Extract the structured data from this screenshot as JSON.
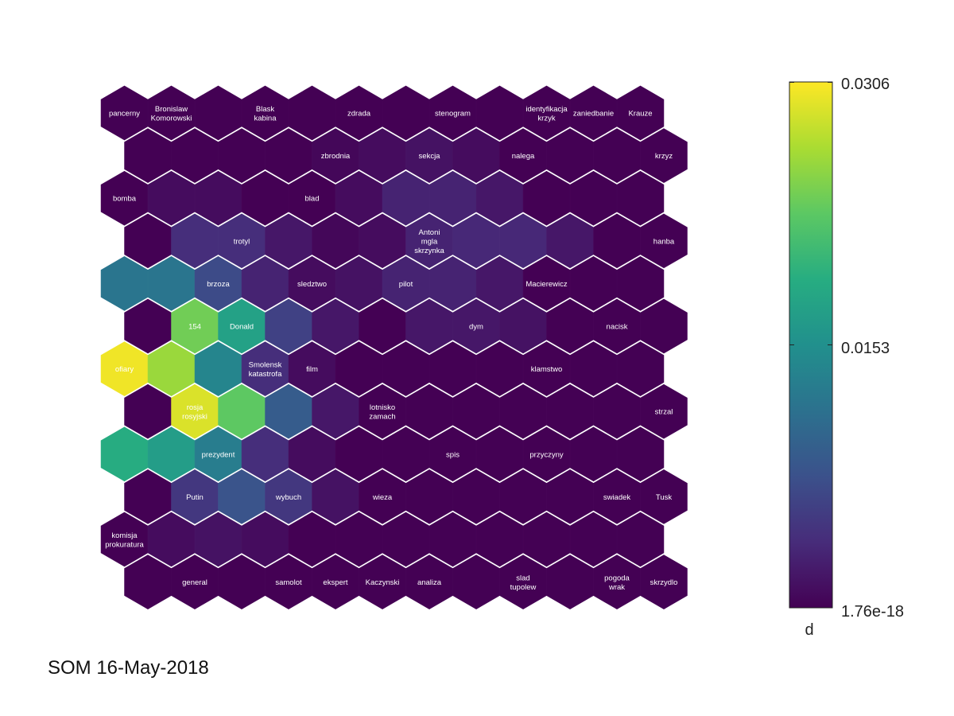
{
  "footer_text": "SOM 16-May-2018",
  "chart_data": {
    "type": "heatmap",
    "subtype": "som-hexagonal-u-matrix",
    "rows": 12,
    "cols": 12,
    "colormap": "viridis",
    "values": [
      [
        0.0,
        0.0,
        0.0,
        0.0,
        0.0,
        0.0,
        0.0,
        0.0,
        0.0,
        0.0,
        0.0,
        0.0
      ],
      [
        0.0,
        0.0,
        0.0,
        0.0,
        0.0005,
        0.001,
        0.0015,
        0.001,
        0.0,
        0.0,
        0.0,
        0.0
      ],
      [
        0.0,
        0.001,
        0.001,
        0.0,
        0.0,
        0.001,
        0.003,
        0.003,
        0.002,
        0.0,
        0.0,
        0.0
      ],
      [
        0.0,
        0.004,
        0.004,
        0.002,
        0.0005,
        0.001,
        0.003,
        0.0035,
        0.0035,
        0.002,
        0.0,
        0.0
      ],
      [
        0.012,
        0.012,
        0.007,
        0.003,
        0.001,
        0.0015,
        0.003,
        0.003,
        0.002,
        0.0,
        0.0,
        0.0
      ],
      [
        0.0,
        0.024,
        0.0175,
        0.006,
        0.002,
        0.0,
        0.002,
        0.002,
        0.0015,
        0.0,
        0.0,
        0.0
      ],
      [
        0.03,
        0.026,
        0.014,
        0.004,
        0.001,
        0.0,
        0.0,
        0.0,
        0.0,
        0.0,
        0.0,
        0.0
      ],
      [
        0.0,
        0.029,
        0.023,
        0.009,
        0.002,
        0.0,
        0.0,
        0.0,
        0.0,
        0.0,
        0.0,
        0.0
      ],
      [
        0.019,
        0.017,
        0.013,
        0.004,
        0.001,
        0.0,
        0.0,
        0.0,
        0.0,
        0.0,
        0.0,
        0.0
      ],
      [
        0.0,
        0.005,
        0.008,
        0.005,
        0.0015,
        0.0,
        0.0,
        0.0,
        0.0,
        0.0,
        0.0,
        0.0
      ],
      [
        0.0,
        0.001,
        0.0015,
        0.001,
        0.0,
        0.0,
        0.0,
        0.0,
        0.0,
        0.0,
        0.0,
        0.0
      ],
      [
        0.0,
        0.0,
        0.0,
        0.0,
        0.0,
        0.0,
        0.0,
        0.0,
        0.0,
        0.0,
        0.0,
        0.0
      ]
    ],
    "labels": [
      {
        "row": 0,
        "col": 0,
        "lines": [
          "pancerny"
        ]
      },
      {
        "row": 0,
        "col": 1,
        "lines": [
          "Bronislaw",
          "Komorowski"
        ]
      },
      {
        "row": 0,
        "col": 3,
        "lines": [
          "Blask",
          "kabina"
        ]
      },
      {
        "row": 0,
        "col": 5,
        "lines": [
          "zdrada"
        ]
      },
      {
        "row": 0,
        "col": 7,
        "lines": [
          "stenogram"
        ]
      },
      {
        "row": 0,
        "col": 9,
        "lines": [
          "identyfikacja",
          "krzyk"
        ]
      },
      {
        "row": 0,
        "col": 10,
        "lines": [
          "zaniedbanie"
        ]
      },
      {
        "row": 0,
        "col": 11,
        "lines": [
          "Krauze"
        ]
      },
      {
        "row": 1,
        "col": 4,
        "lines": [
          "zbrodnia"
        ]
      },
      {
        "row": 1,
        "col": 6,
        "lines": [
          "sekcja"
        ]
      },
      {
        "row": 1,
        "col": 8,
        "lines": [
          "nalega"
        ]
      },
      {
        "row": 1,
        "col": 11,
        "lines": [
          "krzyz"
        ]
      },
      {
        "row": 2,
        "col": 0,
        "lines": [
          "bomba"
        ]
      },
      {
        "row": 2,
        "col": 4,
        "lines": [
          "blad"
        ]
      },
      {
        "row": 3,
        "col": 2,
        "lines": [
          "trotyl"
        ]
      },
      {
        "row": 3,
        "col": 6,
        "lines": [
          "Antoni",
          "mgla",
          "skrzynka"
        ]
      },
      {
        "row": 3,
        "col": 11,
        "lines": [
          "hanba"
        ]
      },
      {
        "row": 4,
        "col": 2,
        "lines": [
          "brzoza"
        ]
      },
      {
        "row": 4,
        "col": 4,
        "lines": [
          "sledztwo"
        ]
      },
      {
        "row": 4,
        "col": 6,
        "lines": [
          "pilot"
        ]
      },
      {
        "row": 4,
        "col": 9,
        "lines": [
          "Macierewicz"
        ]
      },
      {
        "row": 5,
        "col": 1,
        "lines": [
          "154"
        ]
      },
      {
        "row": 5,
        "col": 2,
        "lines": [
          "Donald"
        ]
      },
      {
        "row": 5,
        "col": 7,
        "lines": [
          "dym"
        ]
      },
      {
        "row": 5,
        "col": 10,
        "lines": [
          "nacisk"
        ]
      },
      {
        "row": 6,
        "col": 0,
        "lines": [
          "ofiary"
        ]
      },
      {
        "row": 6,
        "col": 3,
        "lines": [
          "Smolensk",
          "katastrofa"
        ]
      },
      {
        "row": 6,
        "col": 4,
        "lines": [
          "film"
        ]
      },
      {
        "row": 6,
        "col": 9,
        "lines": [
          "klamstwo"
        ]
      },
      {
        "row": 7,
        "col": 1,
        "lines": [
          "rosja",
          "rosyjski"
        ]
      },
      {
        "row": 7,
        "col": 5,
        "lines": [
          "lotnisko",
          "zamach"
        ]
      },
      {
        "row": 7,
        "col": 11,
        "lines": [
          "strzal"
        ]
      },
      {
        "row": 8,
        "col": 2,
        "lines": [
          "prezydent"
        ]
      },
      {
        "row": 8,
        "col": 7,
        "lines": [
          "spis"
        ]
      },
      {
        "row": 8,
        "col": 9,
        "lines": [
          "przyczyny"
        ]
      },
      {
        "row": 9,
        "col": 1,
        "lines": [
          "Putin"
        ]
      },
      {
        "row": 9,
        "col": 3,
        "lines": [
          "wybuch"
        ]
      },
      {
        "row": 9,
        "col": 5,
        "lines": [
          "wieza"
        ]
      },
      {
        "row": 9,
        "col": 10,
        "lines": [
          "swiadek"
        ]
      },
      {
        "row": 9,
        "col": 11,
        "lines": [
          "Tusk"
        ]
      },
      {
        "row": 10,
        "col": 0,
        "lines": [
          "komisja",
          "prokuratura"
        ]
      },
      {
        "row": 11,
        "col": 1,
        "lines": [
          "general"
        ]
      },
      {
        "row": 11,
        "col": 3,
        "lines": [
          "samolot"
        ]
      },
      {
        "row": 11,
        "col": 4,
        "lines": [
          "ekspert"
        ]
      },
      {
        "row": 11,
        "col": 5,
        "lines": [
          "Kaczynski"
        ]
      },
      {
        "row": 11,
        "col": 6,
        "lines": [
          "analiza"
        ]
      },
      {
        "row": 11,
        "col": 8,
        "lines": [
          "slad",
          "tupolew"
        ]
      },
      {
        "row": 11,
        "col": 10,
        "lines": [
          "pogoda",
          "wrak"
        ]
      },
      {
        "row": 11,
        "col": 11,
        "lines": [
          "skrzydlo"
        ]
      }
    ],
    "colorbar": {
      "label": "d",
      "min": 1.76e-18,
      "max": 0.0306,
      "ticks": [
        "0.0306",
        "0.0153",
        "1.76e-18"
      ],
      "tick_values": [
        0.0306,
        0.0153,
        1.76e-18
      ]
    }
  }
}
